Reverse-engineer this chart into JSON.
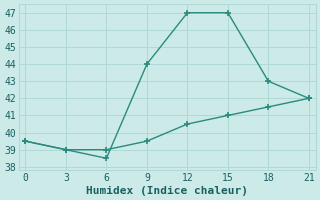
{
  "line1_x": [
    0,
    3,
    6,
    9,
    12,
    15,
    18,
    21
  ],
  "line1_y": [
    39.5,
    39.0,
    38.5,
    44.0,
    47.0,
    47.0,
    43.0,
    42.0
  ],
  "line2_x": [
    0,
    3,
    6,
    9,
    12,
    15,
    18,
    21
  ],
  "line2_y": [
    39.5,
    39.0,
    39.0,
    39.5,
    40.5,
    41.0,
    41.5,
    42.0
  ],
  "line_color": "#2a8a7e",
  "bg_color": "#cceae7",
  "grid_color": "#b0d8d4",
  "xlabel": "Humidex (Indice chaleur)",
  "xlim": [
    -0.5,
    21.5
  ],
  "ylim": [
    37.8,
    47.5
  ],
  "xticks": [
    0,
    3,
    6,
    9,
    12,
    15,
    18,
    21
  ],
  "yticks": [
    38,
    39,
    40,
    41,
    42,
    43,
    44,
    45,
    46,
    47
  ],
  "font_color": "#1a6060",
  "font_family": "monospace",
  "xlabel_fontsize": 8,
  "tick_fontsize": 7
}
